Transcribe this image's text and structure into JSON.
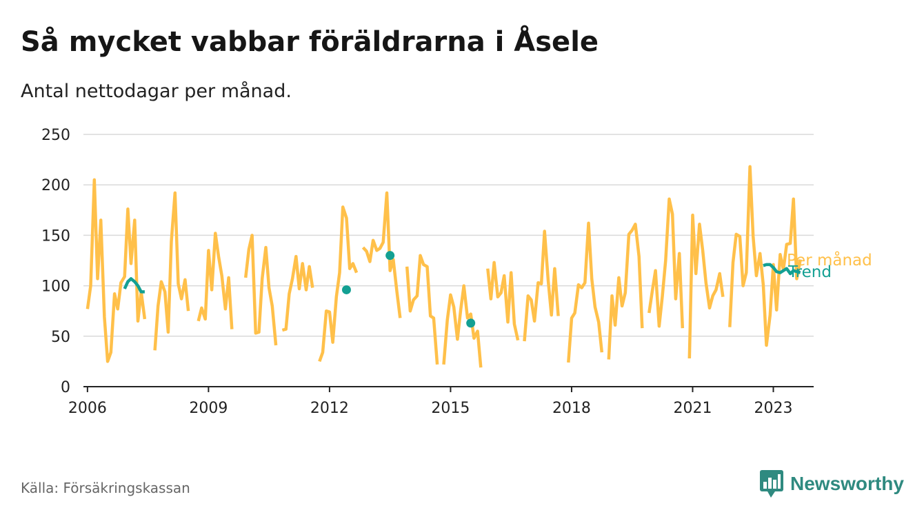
{
  "header": {
    "title": "Så mycket vabbar föräldrarna i Åsele",
    "subtitle": "Antal nettodagar per månad."
  },
  "footer": {
    "source": "Källa: Försäkringskassan",
    "brand": "Newsworthy"
  },
  "colors": {
    "monthly": "#ffc04a",
    "trend": "#13a093",
    "grid": "#d9d9d9",
    "axis": "#222222",
    "brand": "#2f8a80"
  },
  "icons": {
    "brand_logo": "bar-chart-speech-bubble-icon"
  },
  "chart_data": {
    "type": "line",
    "ylim": [
      0,
      250
    ],
    "y_ticks": [
      0,
      50,
      100,
      150,
      200,
      250
    ],
    "xlim": [
      2005.9,
      2024.0
    ],
    "x_ticks": [
      {
        "value": 2006,
        "label": "2006"
      },
      {
        "value": 2009,
        "label": "2009"
      },
      {
        "value": 2012,
        "label": "2012"
      },
      {
        "value": 2015,
        "label": "2015"
      },
      {
        "value": 2018,
        "label": "2018"
      },
      {
        "value": 2021,
        "label": "2021"
      },
      {
        "value": 2023,
        "label": "2023"
      }
    ],
    "grid": true,
    "legend": "inline-right",
    "series": [
      {
        "name": "Per månad",
        "color": "#ffc04a",
        "segments": [
          [
            [
              2006.0,
              77
            ],
            [
              2006.08,
              100
            ],
            [
              2006.17,
              205
            ],
            [
              2006.25,
              107
            ],
            [
              2006.33,
              165
            ],
            [
              2006.42,
              69
            ],
            [
              2006.5,
              25
            ],
            [
              2006.58,
              34
            ],
            [
              2006.67,
              92
            ],
            [
              2006.75,
              77
            ],
            [
              2006.83,
              103
            ],
            [
              2006.92,
              109
            ],
            [
              2007.0,
              176
            ],
            [
              2007.08,
              122
            ],
            [
              2007.17,
              165
            ],
            [
              2007.25,
              65
            ],
            [
              2007.33,
              94
            ],
            [
              2007.42,
              67
            ]
          ],
          [
            [
              2007.67,
              36
            ],
            [
              2007.75,
              80
            ],
            [
              2007.83,
              104
            ],
            [
              2007.92,
              94
            ],
            [
              2008.0,
              54
            ],
            [
              2008.08,
              144
            ],
            [
              2008.17,
              192
            ],
            [
              2008.25,
              102
            ],
            [
              2008.33,
              87
            ],
            [
              2008.42,
              106
            ],
            [
              2008.5,
              75
            ]
          ],
          [
            [
              2008.75,
              65
            ],
            [
              2008.83,
              78
            ],
            [
              2008.92,
              67
            ],
            [
              2009.0,
              135
            ],
            [
              2009.08,
              96
            ],
            [
              2009.17,
              152
            ],
            [
              2009.25,
              129
            ],
            [
              2009.33,
              110
            ],
            [
              2009.42,
              77
            ],
            [
              2009.5,
              108
            ],
            [
              2009.58,
              57
            ]
          ],
          [
            [
              2009.92,
              108
            ],
            [
              2010.0,
              136
            ],
            [
              2010.08,
              150
            ],
            [
              2010.17,
              53
            ],
            [
              2010.25,
              54
            ],
            [
              2010.33,
              107
            ],
            [
              2010.42,
              138
            ],
            [
              2010.5,
              98
            ],
            [
              2010.58,
              80
            ],
            [
              2010.67,
              41
            ]
          ],
          [
            [
              2010.83,
              56
            ],
            [
              2010.92,
              57
            ],
            [
              2011.0,
              92
            ],
            [
              2011.08,
              107
            ],
            [
              2011.17,
              129
            ],
            [
              2011.25,
              97
            ],
            [
              2011.33,
              122
            ],
            [
              2011.42,
              96
            ],
            [
              2011.5,
              119
            ],
            [
              2011.58,
              98
            ]
          ],
          [
            [
              2011.75,
              25
            ],
            [
              2011.83,
              34
            ],
            [
              2011.92,
              75
            ],
            [
              2012.0,
              74
            ],
            [
              2012.08,
              44
            ],
            [
              2012.17,
              89
            ],
            [
              2012.25,
              113
            ],
            [
              2012.33,
              178
            ],
            [
              2012.42,
              167
            ],
            [
              2012.5,
              117
            ],
            [
              2012.58,
              122
            ],
            [
              2012.67,
              113
            ]
          ],
          [
            [
              2012.83,
              138
            ],
            [
              2012.92,
              134
            ],
            [
              2013.0,
              124
            ],
            [
              2013.08,
              145
            ],
            [
              2013.17,
              135
            ],
            [
              2013.25,
              137
            ],
            [
              2013.33,
              143
            ],
            [
              2013.42,
              192
            ],
            [
              2013.5,
              115
            ],
            [
              2013.58,
              126
            ],
            [
              2013.67,
              94
            ],
            [
              2013.75,
              68
            ]
          ],
          [
            [
              2013.92,
              119
            ],
            [
              2014.0,
              75
            ],
            [
              2014.08,
              86
            ],
            [
              2014.17,
              90
            ],
            [
              2014.25,
              130
            ],
            [
              2014.33,
              121
            ],
            [
              2014.42,
              119
            ],
            [
              2014.5,
              70
            ],
            [
              2014.58,
              68
            ],
            [
              2014.67,
              22
            ]
          ],
          [
            [
              2014.83,
              22
            ],
            [
              2014.92,
              66
            ],
            [
              2015.0,
              91
            ],
            [
              2015.08,
              79
            ],
            [
              2015.17,
              47
            ],
            [
              2015.25,
              76
            ],
            [
              2015.33,
              100
            ],
            [
              2015.42,
              68
            ],
            [
              2015.5,
              72
            ],
            [
              2015.58,
              48
            ],
            [
              2015.67,
              55
            ],
            [
              2015.75,
              19
            ]
          ],
          [
            [
              2015.92,
              117
            ],
            [
              2016.0,
              87
            ],
            [
              2016.08,
              123
            ],
            [
              2016.17,
              89
            ],
            [
              2016.25,
              93
            ],
            [
              2016.33,
              110
            ],
            [
              2016.42,
              64
            ],
            [
              2016.5,
              113
            ],
            [
              2016.58,
              62
            ],
            [
              2016.67,
              46
            ]
          ],
          [
            [
              2016.83,
              45
            ],
            [
              2016.92,
              90
            ],
            [
              2017.0,
              86
            ],
            [
              2017.08,
              65
            ],
            [
              2017.17,
              103
            ],
            [
              2017.25,
              102
            ],
            [
              2017.33,
              154
            ],
            [
              2017.42,
              105
            ],
            [
              2017.5,
              71
            ],
            [
              2017.58,
              117
            ],
            [
              2017.67,
              70
            ]
          ],
          [
            [
              2017.92,
              24
            ],
            [
              2018.0,
              68
            ],
            [
              2018.08,
              73
            ],
            [
              2018.17,
              101
            ],
            [
              2018.25,
              98
            ],
            [
              2018.33,
              103
            ],
            [
              2018.42,
              162
            ],
            [
              2018.5,
              107
            ],
            [
              2018.58,
              79
            ],
            [
              2018.67,
              64
            ],
            [
              2018.75,
              34
            ]
          ],
          [
            [
              2018.92,
              27
            ],
            [
              2019.0,
              90
            ],
            [
              2019.08,
              61
            ],
            [
              2019.17,
              108
            ],
            [
              2019.25,
              80
            ],
            [
              2019.33,
              93
            ],
            [
              2019.42,
              151
            ],
            [
              2019.5,
              155
            ],
            [
              2019.58,
              161
            ],
            [
              2019.67,
              129
            ],
            [
              2019.75,
              58
            ]
          ],
          [
            [
              2019.92,
              73
            ],
            [
              2020.0,
              95
            ],
            [
              2020.08,
              115
            ],
            [
              2020.17,
              60
            ],
            [
              2020.25,
              90
            ],
            [
              2020.33,
              125
            ],
            [
              2020.42,
              186
            ],
            [
              2020.5,
              171
            ],
            [
              2020.58,
              87
            ],
            [
              2020.67,
              132
            ],
            [
              2020.75,
              58
            ]
          ],
          [
            [
              2020.92,
              28
            ],
            [
              2021.0,
              170
            ],
            [
              2021.08,
              112
            ],
            [
              2021.17,
              161
            ],
            [
              2021.25,
              135
            ],
            [
              2021.33,
              103
            ],
            [
              2021.42,
              78
            ],
            [
              2021.5,
              90
            ],
            [
              2021.58,
              96
            ],
            [
              2021.67,
              112
            ],
            [
              2021.75,
              89
            ]
          ],
          [
            [
              2021.92,
              59
            ],
            [
              2022.0,
              123
            ],
            [
              2022.08,
              151
            ],
            [
              2022.17,
              149
            ],
            [
              2022.25,
              100
            ],
            [
              2022.33,
              113
            ],
            [
              2022.42,
              218
            ],
            [
              2022.5,
              149
            ],
            [
              2022.58,
              110
            ],
            [
              2022.67,
              132
            ],
            [
              2022.75,
              101
            ],
            [
              2022.83,
              41
            ],
            [
              2022.92,
              71
            ],
            [
              2023.0,
              121
            ],
            [
              2023.08,
              76
            ],
            [
              2023.17,
              131
            ],
            [
              2023.25,
              116
            ],
            [
              2023.33,
              141
            ],
            [
              2023.42,
              142
            ],
            [
              2023.5,
              186
            ],
            [
              2023.58,
              107
            ],
            [
              2023.67,
              126
            ]
          ]
        ],
        "points": []
      },
      {
        "name": "Trend",
        "color": "#13a093",
        "segments": [
          [
            [
              2006.92,
              97
            ],
            [
              2007.0,
              104
            ],
            [
              2007.08,
              107
            ],
            [
              2007.17,
              104
            ],
            [
              2007.25,
              100
            ],
            [
              2007.33,
              94
            ],
            [
              2007.42,
              94
            ]
          ],
          [
            [
              2022.75,
              120
            ],
            [
              2022.83,
              121
            ],
            [
              2022.92,
              121
            ],
            [
              2023.0,
              118
            ],
            [
              2023.08,
              114
            ],
            [
              2023.17,
              113
            ],
            [
              2023.25,
              115
            ],
            [
              2023.33,
              117
            ],
            [
              2023.42,
              112
            ],
            [
              2023.5,
              115
            ],
            [
              2023.58,
              114
            ],
            [
              2023.67,
              113
            ]
          ]
        ],
        "points": [
          [
            2012.42,
            96
          ],
          [
            2013.5,
            130
          ],
          [
            2015.5,
            63
          ]
        ]
      }
    ]
  }
}
